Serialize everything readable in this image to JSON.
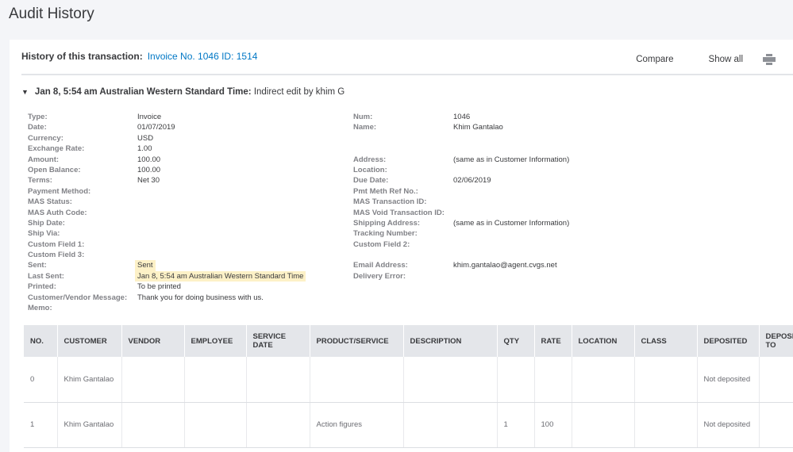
{
  "page_title": "Audit History",
  "header": {
    "label": "History of this transaction:",
    "link": "Invoice No. 1046 ID: 1514",
    "compare": "Compare",
    "show_all": "Show all",
    "print_icon": "printer-icon"
  },
  "entry": {
    "toggle": "▼",
    "time": "Jan 8, 5:54 am Australian Western Standard Time:",
    "desc": "Indirect edit by khim G"
  },
  "left": [
    {
      "label": "Type:",
      "value": "Invoice"
    },
    {
      "label": "Date:",
      "value": "01/07/2019"
    },
    {
      "label": "Currency:",
      "value": "USD"
    },
    {
      "label": "Exchange Rate:",
      "value": "1.00"
    },
    {
      "label": "Amount:",
      "value": "100.00"
    },
    {
      "label": "Open Balance:",
      "value": "100.00"
    },
    {
      "label": "Terms:",
      "value": "Net 30"
    },
    {
      "label": "Payment Method:",
      "value": ""
    },
    {
      "label": "MAS Status:",
      "value": ""
    },
    {
      "label": "MAS Auth Code:",
      "value": ""
    },
    {
      "label": "Ship Date:",
      "value": ""
    },
    {
      "label": "Ship Via:",
      "value": ""
    },
    {
      "label": "Custom Field 1:",
      "value": ""
    },
    {
      "label": "Custom Field 3:",
      "value": ""
    },
    {
      "label": "Sent:",
      "value": "Sent",
      "highlight": true
    },
    {
      "label": "Last Sent:",
      "value": "Jan 8, 5:54 am Australian Western Standard Time",
      "highlight": true
    },
    {
      "label": "Printed:",
      "value": "To be printed"
    },
    {
      "label": "Customer/Vendor Message:",
      "value": "Thank you for doing business with us."
    },
    {
      "label": "Memo:",
      "value": ""
    }
  ],
  "right": [
    {
      "label": "Num:",
      "value": "1046"
    },
    {
      "label": "Name:",
      "value": "Khim Gantalao"
    },
    {
      "label": "",
      "value": ""
    },
    {
      "label": "",
      "value": ""
    },
    {
      "label": "Address:",
      "value": "(same as in Customer Information)"
    },
    {
      "label": "Location:",
      "value": ""
    },
    {
      "label": "Due Date:",
      "value": "02/06/2019"
    },
    {
      "label": "Pmt Meth Ref No.:",
      "value": ""
    },
    {
      "label": "MAS Transaction ID:",
      "value": ""
    },
    {
      "label": "MAS Void Transaction ID:",
      "value": ""
    },
    {
      "label": "Shipping Address:",
      "value": "(same as in Customer Information)"
    },
    {
      "label": "Tracking Number:",
      "value": ""
    },
    {
      "label": "Custom Field 2:",
      "value": ""
    },
    {
      "label": "",
      "value": ""
    },
    {
      "label": "Email Address:",
      "value": "khim.gantalao@agent.cvgs.net"
    },
    {
      "label": "Delivery Error:",
      "value": ""
    }
  ],
  "table": {
    "columns": [
      "NO.",
      "CUSTOMER",
      "VENDOR",
      "EMPLOYEE",
      "SERVICE DATE",
      "PRODUCT/SERVICE",
      "DESCRIPTION",
      "QTY",
      "RATE",
      "LOCATION",
      "CLASS",
      "DEPOSITED",
      "DEPOSITED TO"
    ],
    "rows": [
      [
        "0",
        "Khim Gantalao",
        "",
        "",
        "",
        "",
        "",
        "",
        "",
        "",
        "",
        "Not deposited",
        ""
      ],
      [
        "1",
        "Khim Gantalao",
        "",
        "",
        "",
        "Action figures",
        "",
        "1",
        "100",
        "",
        "",
        "Not deposited",
        ""
      ]
    ]
  }
}
